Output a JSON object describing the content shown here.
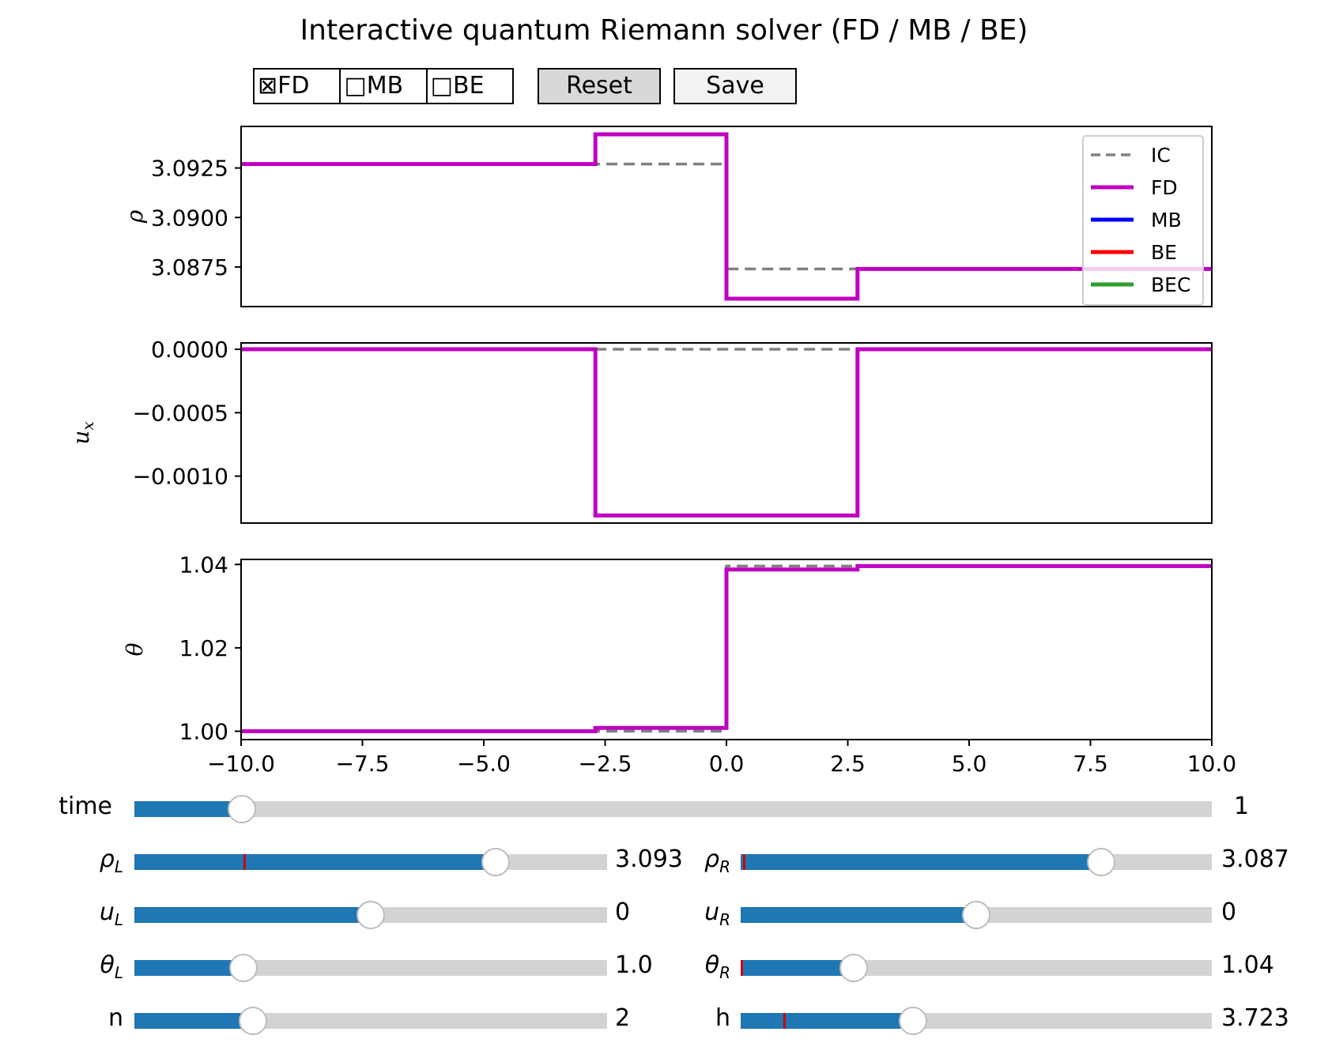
{
  "title": "Interactive quantum Riemann solver (FD / MB / BE)",
  "checkboxes": [
    {
      "label": "FD",
      "checked": true
    },
    {
      "label": "MB",
      "checked": false
    },
    {
      "label": "BE",
      "checked": false
    }
  ],
  "check_glyphs": {
    "on": "⊠",
    "off": "□"
  },
  "buttons": {
    "reset": "Reset",
    "save": "Save"
  },
  "colors": {
    "FD": "#bf00bf",
    "MB": "#0000ff",
    "BE": "#ff0000",
    "BEC": "#2ca02c",
    "IC": "#808080",
    "slider_fill": "#1f77b4",
    "slider_track": "#d3d3d3",
    "marker": "#d40000"
  },
  "chart_data": [
    {
      "type": "line",
      "ylabel": "ρ",
      "xlim": [
        -10,
        10
      ],
      "ylim": [
        3.0855,
        3.0946
      ],
      "yticks": [
        3.0875,
        3.09,
        3.0925
      ],
      "ytick_labels": [
        "3.0875",
        "3.0900",
        "3.0925"
      ],
      "legend": {
        "position": "top-right",
        "entries": [
          "IC",
          "FD",
          "MB",
          "BE",
          "BEC"
        ]
      },
      "series": [
        {
          "name": "IC",
          "style": "dashed",
          "x": [
            -10,
            0,
            0,
            10
          ],
          "y": [
            3.0927,
            3.0927,
            3.0874,
            3.0874
          ]
        },
        {
          "name": "FD",
          "style": "solid",
          "x": [
            -10,
            -2.7,
            -2.7,
            0,
            0,
            2.7,
            2.7,
            10
          ],
          "y": [
            3.0927,
            3.0927,
            3.0942,
            3.0942,
            3.0859,
            3.0859,
            3.0874,
            3.0874
          ]
        }
      ]
    },
    {
      "type": "line",
      "ylabel": "u_x",
      "xlim": [
        -10,
        10
      ],
      "ylim": [
        -0.00137,
        5e-05
      ],
      "yticks": [
        -0.001,
        -0.0005,
        0
      ],
      "ytick_labels": [
        "−0.0010",
        "−0.0005",
        "0.0000"
      ],
      "series": [
        {
          "name": "IC",
          "style": "dashed",
          "x": [
            -2.7,
            2.7
          ],
          "y": [
            0,
            0
          ]
        },
        {
          "name": "FD",
          "style": "solid",
          "x": [
            -10,
            -2.7,
            -2.7,
            2.7,
            2.7,
            10
          ],
          "y": [
            0,
            0,
            -0.00131,
            -0.00131,
            0,
            0
          ]
        }
      ]
    },
    {
      "type": "line",
      "ylabel": "θ",
      "xlim": [
        -10,
        10
      ],
      "ylim": [
        0.998,
        1.0412
      ],
      "yticks": [
        1.0,
        1.02,
        1.04
      ],
      "ytick_labels": [
        "1.00",
        "1.02",
        "1.04"
      ],
      "xticks": [
        -10,
        -7.5,
        -5,
        -2.5,
        0,
        2.5,
        5,
        7.5,
        10
      ],
      "xtick_labels": [
        "−10.0",
        "−7.5",
        "−5.0",
        "−2.5",
        "0.0",
        "2.5",
        "5.0",
        "7.5",
        "10.0"
      ],
      "series": [
        {
          "name": "IC",
          "style": "dashed",
          "x": [
            -10,
            0,
            0,
            10
          ],
          "y": [
            1.0,
            1.0,
            1.0396,
            1.0396
          ]
        },
        {
          "name": "FD",
          "style": "solid",
          "x": [
            -10,
            -2.7,
            -2.7,
            0,
            0,
            2.7,
            2.7,
            10
          ],
          "y": [
            1.0,
            1.0,
            1.0008,
            1.0008,
            1.0388,
            1.0388,
            1.0396,
            1.0396
          ]
        }
      ]
    }
  ],
  "sliders": {
    "time": {
      "label": "time",
      "value": "1",
      "fraction": 0.1
    },
    "rhoL": {
      "label": "ρL",
      "value": "3.093",
      "fraction": 0.765,
      "marker": 0.23
    },
    "rhoR": {
      "label": "ρR",
      "value": "3.087",
      "fraction": 0.765,
      "marker": 0.005
    },
    "uL": {
      "label": "uL",
      "value": "0",
      "fraction": 0.5
    },
    "uR": {
      "label": "uR",
      "value": "0",
      "fraction": 0.5
    },
    "thetaL": {
      "label": "θL",
      "value": "1.0",
      "fraction": 0.23
    },
    "thetaR": {
      "label": "θR",
      "value": "1.04",
      "fraction": 0.24,
      "marker": 0.0
    },
    "n": {
      "label": "n",
      "value": "2",
      "fraction": 0.25
    },
    "h": {
      "label": "h",
      "value": "3.723",
      "fraction": 0.365,
      "marker": 0.09
    }
  }
}
